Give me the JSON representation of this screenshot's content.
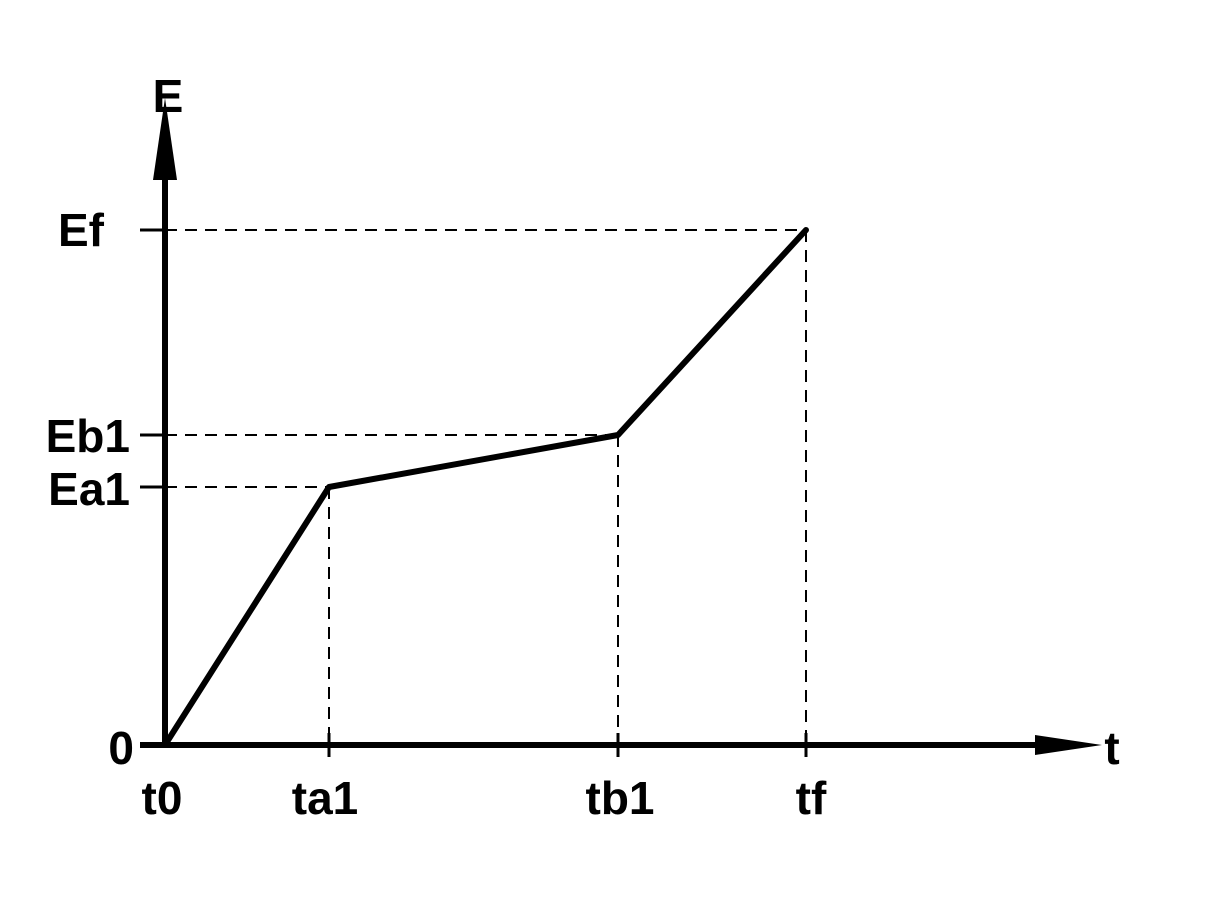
{
  "chart_data": {
    "type": "line",
    "x_axis_label": "t",
    "y_axis_label": "E",
    "x_ticks": [
      "t0",
      "ta1",
      "tb1",
      "tf"
    ],
    "y_ticks": [
      "0",
      "Ea1",
      "Eb1",
      "Ef"
    ],
    "series": [
      {
        "points": [
          {
            "x": "t0",
            "y": "0"
          },
          {
            "x": "ta1",
            "y": "Ea1"
          },
          {
            "x": "tb1",
            "y": "Eb1"
          },
          {
            "x": "tf",
            "y": "Ef"
          }
        ]
      }
    ],
    "dashed_guides": true,
    "grid": false,
    "colors": {
      "line": "#000000",
      "background": "#ffffff"
    }
  }
}
